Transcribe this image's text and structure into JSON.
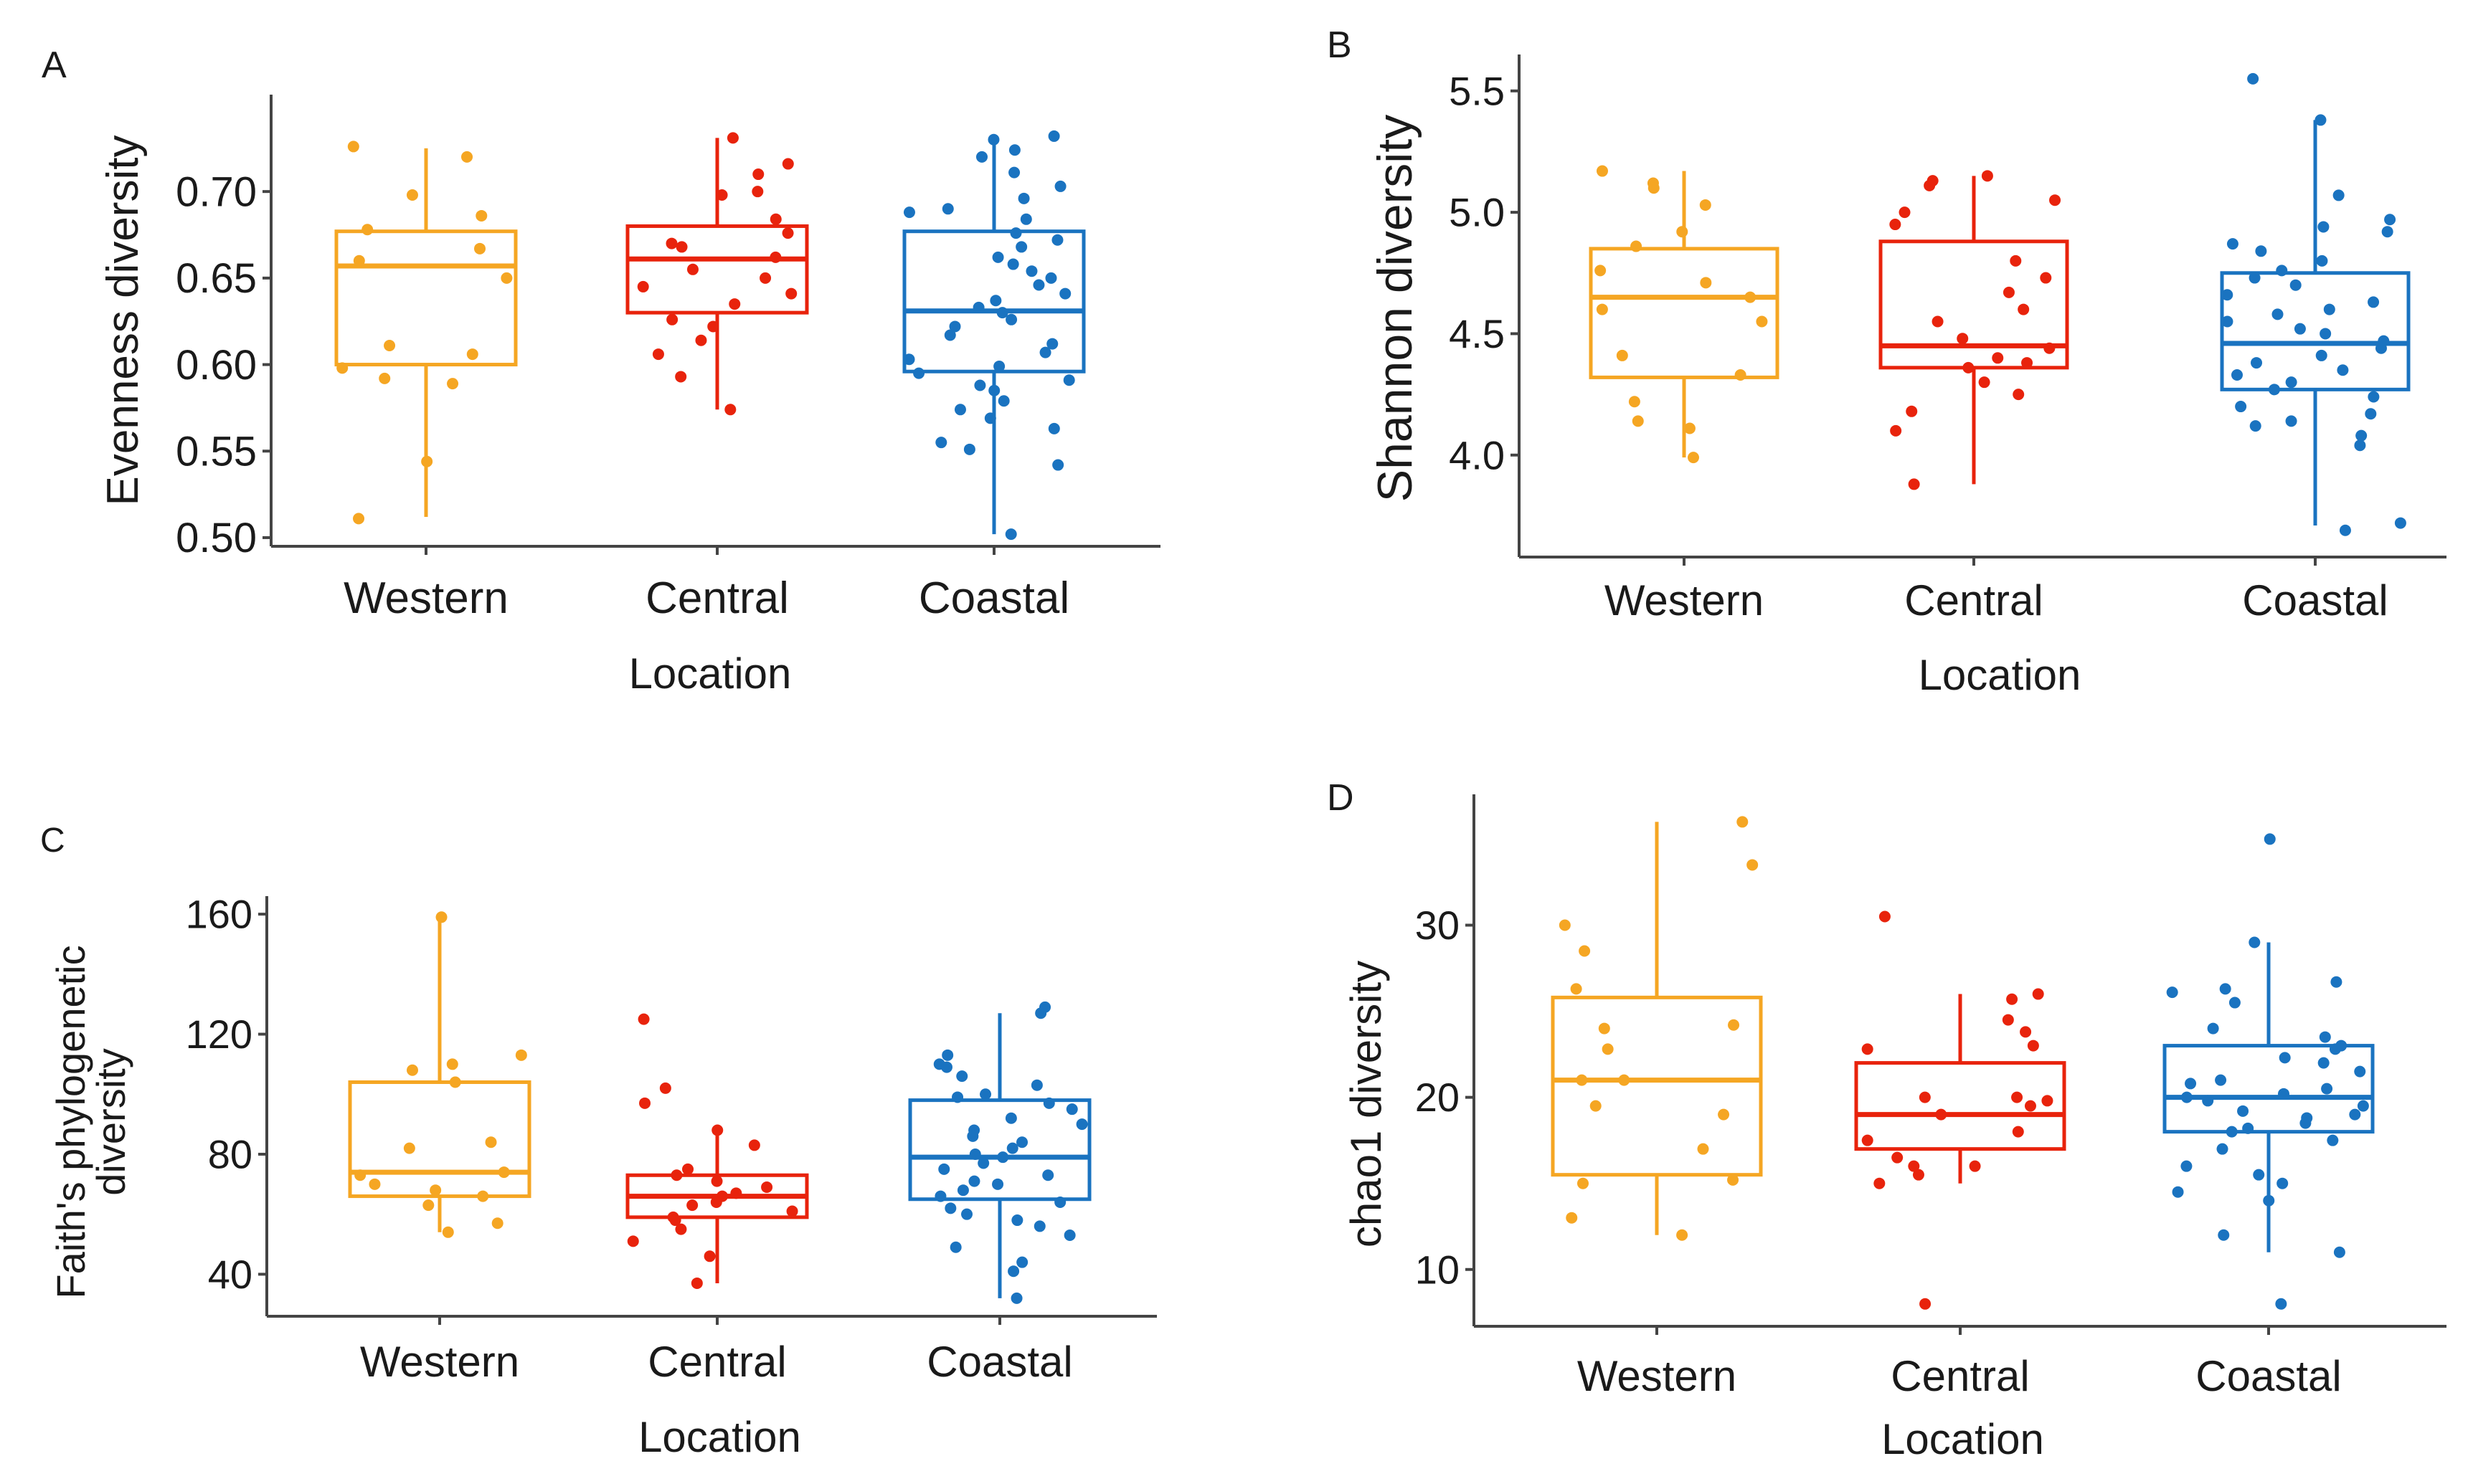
{
  "colors": {
    "Western": "#f5a623",
    "Central": "#e8230c",
    "Coastal": "#1a73c0",
    "axis": "#444444"
  },
  "chart_data": [
    {
      "panel": "A",
      "type": "box",
      "title": "",
      "xlabel": "Location",
      "ylabel": "Evenness diversity",
      "ylim": [
        0.495,
        0.756
      ],
      "ticks": [
        0.5,
        0.55,
        0.6,
        0.65,
        0.7
      ],
      "tick_decimals": 2,
      "categories": [
        "Western",
        "Central",
        "Coastal"
      ],
      "series": [
        {
          "name": "Western",
          "box": {
            "lower_whisker": 0.512,
            "q1": 0.6,
            "median": 0.657,
            "q3": 0.677,
            "upper_whisker": 0.725
          },
          "points": [
            0.72,
            0.726,
            0.698,
            0.686,
            0.678,
            0.667,
            0.66,
            0.65,
            0.611,
            0.606,
            0.598,
            0.592,
            0.589,
            0.544,
            0.511
          ]
        },
        {
          "name": "Central",
          "box": {
            "lower_whisker": 0.574,
            "q1": 0.63,
            "median": 0.661,
            "q3": 0.68,
            "upper_whisker": 0.731
          },
          "points": [
            0.731,
            0.716,
            0.71,
            0.7,
            0.698,
            0.684,
            0.676,
            0.67,
            0.668,
            0.662,
            0.655,
            0.65,
            0.645,
            0.641,
            0.635,
            0.626,
            0.622,
            0.614,
            0.606,
            0.593,
            0.574
          ]
        },
        {
          "name": "Coastal",
          "box": {
            "lower_whisker": 0.502,
            "q1": 0.596,
            "median": 0.631,
            "q3": 0.677,
            "upper_whisker": 0.732
          },
          "points": [
            0.732,
            0.73,
            0.724,
            0.72,
            0.711,
            0.703,
            0.696,
            0.69,
            0.688,
            0.684,
            0.676,
            0.672,
            0.668,
            0.662,
            0.658,
            0.654,
            0.65,
            0.646,
            0.641,
            0.637,
            0.633,
            0.63,
            0.626,
            0.622,
            0.617,
            0.612,
            0.607,
            0.603,
            0.599,
            0.595,
            0.591,
            0.588,
            0.585,
            0.579,
            0.574,
            0.569,
            0.563,
            0.555,
            0.551,
            0.542,
            0.502
          ]
        }
      ]
    },
    {
      "panel": "B",
      "type": "box",
      "title": "",
      "xlabel": "Location",
      "ylabel": "Shannon diversity",
      "ylim": [
        3.58,
        5.65
      ],
      "ticks": [
        4.0,
        4.5,
        5.0,
        5.5
      ],
      "tick_decimals": 1,
      "categories": [
        "Western",
        "Central",
        "Coastal"
      ],
      "series": [
        {
          "name": "Western",
          "box": {
            "lower_whisker": 3.99,
            "q1": 4.32,
            "median": 4.65,
            "q3": 4.85,
            "upper_whisker": 5.17
          },
          "points": [
            5.17,
            5.12,
            5.1,
            5.03,
            4.92,
            4.86,
            4.76,
            4.71,
            4.65,
            4.6,
            4.55,
            4.41,
            4.33,
            4.22,
            4.14,
            4.11,
            3.99
          ]
        },
        {
          "name": "Central",
          "box": {
            "lower_whisker": 3.88,
            "q1": 4.36,
            "median": 4.45,
            "q3": 4.88,
            "upper_whisker": 5.15
          },
          "points": [
            5.15,
            5.13,
            5.11,
            5.05,
            5.0,
            4.95,
            4.8,
            4.73,
            4.67,
            4.6,
            4.55,
            4.48,
            4.44,
            4.4,
            4.38,
            4.36,
            4.3,
            4.25,
            4.18,
            4.1,
            3.88
          ]
        },
        {
          "name": "Coastal",
          "box": {
            "lower_whisker": 3.71,
            "q1": 4.27,
            "median": 4.46,
            "q3": 4.75,
            "upper_whisker": 5.38
          },
          "points": [
            5.55,
            5.38,
            5.07,
            4.97,
            4.94,
            4.92,
            4.87,
            4.84,
            4.8,
            4.76,
            4.73,
            4.7,
            4.66,
            4.63,
            4.6,
            4.58,
            4.55,
            4.52,
            4.5,
            4.47,
            4.44,
            4.41,
            4.38,
            4.35,
            4.33,
            4.3,
            4.27,
            4.24,
            4.2,
            4.17,
            4.14,
            4.12,
            4.08,
            4.04,
            3.72,
            3.69
          ]
        }
      ]
    },
    {
      "panel": "C",
      "type": "box",
      "title": "",
      "xlabel": "Location",
      "ylabel": "Faith's phylogenetic diversity",
      "ylim": [
        26,
        166
      ],
      "ticks": [
        40,
        80,
        120,
        160
      ],
      "tick_decimals": 0,
      "categories": [
        "Western",
        "Central",
        "Coastal"
      ],
      "series": [
        {
          "name": "Western",
          "box": {
            "lower_whisker": 54,
            "q1": 66,
            "median": 74,
            "q3": 104,
            "upper_whisker": 159
          },
          "points": [
            159,
            113,
            110,
            108,
            104,
            84,
            82,
            74,
            73,
            70,
            68,
            66,
            63,
            57,
            54
          ]
        },
        {
          "name": "Central",
          "box": {
            "lower_whisker": 37,
            "q1": 59,
            "median": 66,
            "q3": 73,
            "upper_whisker": 88
          },
          "points": [
            125,
            102,
            97,
            88,
            83,
            75,
            73,
            71,
            69,
            67,
            66,
            64,
            63,
            61,
            59,
            58,
            55,
            51,
            46,
            37
          ]
        },
        {
          "name": "Coastal",
          "box": {
            "lower_whisker": 32,
            "q1": 65,
            "median": 79,
            "q3": 98,
            "upper_whisker": 127
          },
          "points": [
            129,
            127,
            113,
            110,
            109,
            106,
            103,
            100,
            99,
            97,
            95,
            92,
            90,
            88,
            86,
            84,
            82,
            80,
            79,
            77,
            75,
            73,
            71,
            70,
            68,
            66,
            64,
            62,
            60,
            58,
            56,
            53,
            49,
            44,
            41,
            32
          ]
        }
      ]
    },
    {
      "panel": "D",
      "type": "box",
      "title": "",
      "xlabel": "Location",
      "ylabel": "chao1 diversity",
      "ylim": [
        6.7,
        37.6
      ],
      "ticks": [
        10,
        20,
        30
      ],
      "tick_decimals": 0,
      "categories": [
        "Western",
        "Central",
        "Coastal"
      ],
      "series": [
        {
          "name": "Western",
          "box": {
            "lower_whisker": 12.0,
            "q1": 15.5,
            "median": 21.0,
            "q3": 25.8,
            "upper_whisker": 36.0
          },
          "points": [
            36.0,
            33.5,
            30.0,
            28.5,
            26.3,
            24.2,
            24.0,
            22.8,
            21.0,
            21.0,
            19.5,
            19.0,
            17.0,
            15.2,
            15.0,
            13.0,
            12.0
          ]
        },
        {
          "name": "Central",
          "box": {
            "lower_whisker": 15.0,
            "q1": 17.0,
            "median": 19.0,
            "q3": 22.0,
            "upper_whisker": 26.0
          },
          "points": [
            30.5,
            26.0,
            25.7,
            24.5,
            23.8,
            23.0,
            22.8,
            20.0,
            20.0,
            19.8,
            19.5,
            19.0,
            18.0,
            17.5,
            16.5,
            16.0,
            16.0,
            15.5,
            15.0,
            8.0
          ]
        },
        {
          "name": "Coastal",
          "box": {
            "lower_whisker": 11.0,
            "q1": 18.0,
            "median": 20.0,
            "q3": 23.0,
            "upper_whisker": 29.0
          },
          "points": [
            35.0,
            29.0,
            26.7,
            26.3,
            26.1,
            25.5,
            24.0,
            23.5,
            23.0,
            22.8,
            22.3,
            22.0,
            21.5,
            21.0,
            20.8,
            20.5,
            20.2,
            20.0,
            19.8,
            19.5,
            19.2,
            19.0,
            18.8,
            18.5,
            18.2,
            18.0,
            17.5,
            17.0,
            16.0,
            15.5,
            15.0,
            14.5,
            14.0,
            12.0,
            11.0,
            8.0
          ]
        }
      ]
    }
  ]
}
